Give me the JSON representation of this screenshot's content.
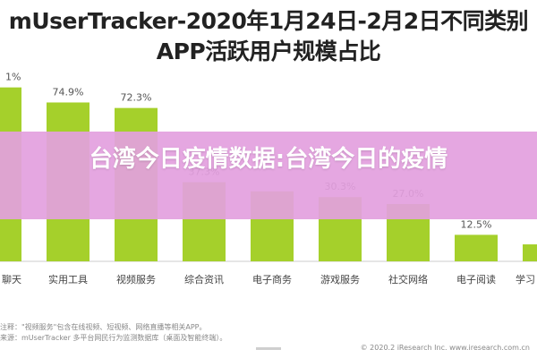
{
  "chart_data": {
    "type": "bar",
    "title": "mUserTracker-2020年1月24日-2月2日不同类别APP活跃用户规模占比",
    "categories": [
      "聊天",
      "实用工具",
      "视频服务",
      "综合资讯",
      "电子商务",
      "游戏服务",
      "社交网络",
      "电子阅读",
      "学习"
    ],
    "values": [
      null,
      74.9,
      72.3,
      37.3,
      null,
      30.3,
      27.0,
      12.5,
      null
    ],
    "value_labels": [
      "1%",
      "74.9%",
      "72.3%",
      "37.3%",
      "",
      "30.3%",
      "27.0%",
      "12.5%",
      ""
    ],
    "ylim": [
      0,
      100
    ],
    "grid": false,
    "bar_color": "#a5d02b",
    "label_color": "#666666"
  },
  "title_lines": [
    "mUserTracker-2020年1月24日-2月2日不同类别",
    "APP活跃用户规模占比"
  ],
  "overlay": {
    "text": "台湾今日疫情数据:台湾今日的疫情",
    "color": "#e3a0de"
  },
  "footnotes": {
    "line1": "注释：\"视频服务\"包含在线视频、短视频、网络直播等相关APP。",
    "line2": "来源：mUserTracker 多平台网民行为监测数据库（桌面及智能终端）。",
    "brand": "© 2020.2 iResearch Inc.   www.iresearch.com.cn"
  }
}
